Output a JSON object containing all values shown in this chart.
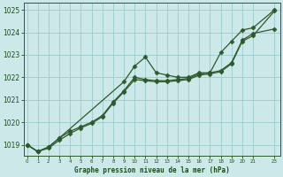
{
  "title": "Graphe pression niveau de la mer (hPa)",
  "bg_color": "#cce8e8",
  "grid_color": "#99cccc",
  "line_color": "#2d5a2d",
  "marker_color": "#2d5a2d",
  "xlabel_color": "#1a4d1a",
  "ylim": [
    1018.5,
    1025.3
  ],
  "xlim": [
    -0.3,
    23.5
  ],
  "yticks": [
    1019,
    1020,
    1021,
    1022,
    1023,
    1024,
    1025
  ],
  "xticks": [
    0,
    1,
    2,
    3,
    4,
    5,
    6,
    7,
    8,
    9,
    10,
    11,
    12,
    13,
    14,
    15,
    16,
    17,
    18,
    19,
    20,
    21,
    23
  ],
  "series": [
    {
      "x": [
        0,
        1,
        2,
        3,
        9,
        10,
        11,
        12,
        13,
        14,
        15,
        16,
        17,
        18,
        19,
        20,
        21,
        23
      ],
      "y": [
        1019.0,
        1018.7,
        1018.9,
        1019.3,
        1021.8,
        1022.5,
        1022.9,
        1022.2,
        1022.1,
        1022.0,
        1022.0,
        1022.2,
        1022.2,
        1023.1,
        1023.6,
        1024.1,
        1024.2,
        1025.0
      ]
    },
    {
      "x": [
        0,
        1,
        2,
        3,
        4,
        5,
        6,
        7,
        8,
        9,
        10,
        11,
        12,
        13,
        14,
        15,
        16,
        17,
        18,
        19,
        20,
        21,
        23
      ],
      "y": [
        1019.0,
        1018.7,
        1018.9,
        1019.3,
        1019.6,
        1019.8,
        1020.0,
        1020.3,
        1020.9,
        1021.4,
        1022.0,
        1021.9,
        1021.85,
        1021.85,
        1021.9,
        1021.95,
        1022.15,
        1022.2,
        1022.3,
        1022.65,
        1023.65,
        1023.95,
        1024.15
      ]
    },
    {
      "x": [
        0,
        1,
        2,
        3,
        4,
        5,
        6,
        7,
        8,
        9,
        10,
        11,
        12,
        13,
        14,
        15,
        16,
        17,
        18,
        19,
        20,
        21,
        23
      ],
      "y": [
        1019.0,
        1018.7,
        1018.85,
        1019.2,
        1019.5,
        1019.75,
        1019.95,
        1020.25,
        1020.85,
        1021.35,
        1021.9,
        1021.85,
        1021.8,
        1021.8,
        1021.85,
        1021.9,
        1022.1,
        1022.15,
        1022.25,
        1022.6,
        1023.6,
        1023.85,
        1024.95
      ]
    }
  ]
}
